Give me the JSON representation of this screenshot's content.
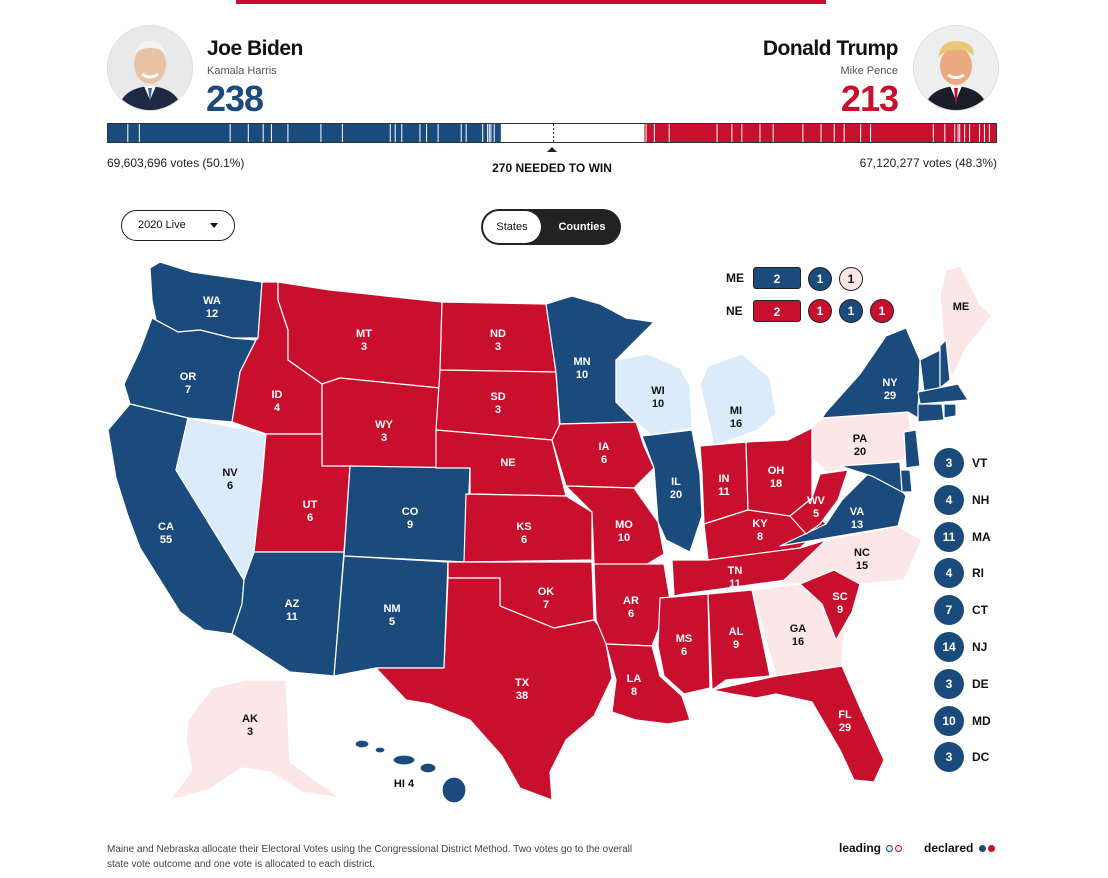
{
  "colors": {
    "dem_declared": "#1b4a7d",
    "rep_declared": "#c8102e",
    "dem_leading": "#dcebf9",
    "rep_leading": "#fbe6e8"
  },
  "candidates": {
    "dem": {
      "name": "Joe Biden",
      "running_mate": "Kamala Harris",
      "electoral_votes": "238",
      "popular": "69,603,696 votes (50.1%)",
      "avatar_icon": "candidate-photo-biden"
    },
    "rep": {
      "name": "Donald Trump",
      "running_mate": "Mike Pence",
      "electoral_votes": "213",
      "popular": "67,120,277 votes (48.3%)",
      "avatar_icon": "candidate-photo-trump"
    }
  },
  "progress": {
    "dem_ev": 238,
    "rep_ev": 213,
    "total_ev": 538,
    "to_win": 270
  },
  "needed_label": "270 NEEDED TO WIN",
  "controls": {
    "year_select": "2020 Live",
    "view_toggle": {
      "option_a": "States",
      "option_b": "Counties",
      "selected": "States"
    }
  },
  "states": [
    {
      "abbr": "WA",
      "ev": "12",
      "status": "dem_declared"
    },
    {
      "abbr": "OR",
      "ev": "7",
      "status": "dem_declared"
    },
    {
      "abbr": "CA",
      "ev": "55",
      "status": "dem_declared"
    },
    {
      "abbr": "NV",
      "ev": "6",
      "status": "dem_leading"
    },
    {
      "abbr": "ID",
      "ev": "4",
      "status": "rep_declared"
    },
    {
      "abbr": "MT",
      "ev": "3",
      "status": "rep_declared"
    },
    {
      "abbr": "WY",
      "ev": "3",
      "status": "rep_declared"
    },
    {
      "abbr": "UT",
      "ev": "6",
      "status": "rep_declared"
    },
    {
      "abbr": "AZ",
      "ev": "11",
      "status": "dem_declared"
    },
    {
      "abbr": "CO",
      "ev": "9",
      "status": "dem_declared"
    },
    {
      "abbr": "NM",
      "ev": "5",
      "status": "dem_declared"
    },
    {
      "abbr": "ND",
      "ev": "3",
      "status": "rep_declared"
    },
    {
      "abbr": "SD",
      "ev": "3",
      "status": "rep_declared"
    },
    {
      "abbr": "NE",
      "ev": "",
      "status": "rep_declared"
    },
    {
      "abbr": "KS",
      "ev": "6",
      "status": "rep_declared"
    },
    {
      "abbr": "OK",
      "ev": "7",
      "status": "rep_declared"
    },
    {
      "abbr": "TX",
      "ev": "38",
      "status": "rep_declared"
    },
    {
      "abbr": "MN",
      "ev": "10",
      "status": "dem_declared"
    },
    {
      "abbr": "IA",
      "ev": "6",
      "status": "rep_declared"
    },
    {
      "abbr": "MO",
      "ev": "10",
      "status": "rep_declared"
    },
    {
      "abbr": "AR",
      "ev": "6",
      "status": "rep_declared"
    },
    {
      "abbr": "LA",
      "ev": "8",
      "status": "rep_declared"
    },
    {
      "abbr": "WI",
      "ev": "10",
      "status": "dem_leading"
    },
    {
      "abbr": "IL",
      "ev": "20",
      "status": "dem_declared"
    },
    {
      "abbr": "MI",
      "ev": "16",
      "status": "dem_leading"
    },
    {
      "abbr": "IN",
      "ev": "11",
      "status": "rep_declared"
    },
    {
      "abbr": "OH",
      "ev": "18",
      "status": "rep_declared"
    },
    {
      "abbr": "KY",
      "ev": "8",
      "status": "rep_declared"
    },
    {
      "abbr": "TN",
      "ev": "11",
      "status": "rep_declared"
    },
    {
      "abbr": "MS",
      "ev": "6",
      "status": "rep_declared"
    },
    {
      "abbr": "AL",
      "ev": "9",
      "status": "rep_declared"
    },
    {
      "abbr": "GA",
      "ev": "16",
      "status": "rep_leading"
    },
    {
      "abbr": "FL",
      "ev": "29",
      "status": "rep_declared"
    },
    {
      "abbr": "SC",
      "ev": "9",
      "status": "rep_declared"
    },
    {
      "abbr": "NC",
      "ev": "15",
      "status": "rep_leading"
    },
    {
      "abbr": "VA",
      "ev": "13",
      "status": "dem_declared"
    },
    {
      "abbr": "WV",
      "ev": "5",
      "status": "rep_declared"
    },
    {
      "abbr": "PA",
      "ev": "20",
      "status": "rep_leading"
    },
    {
      "abbr": "NY",
      "ev": "29",
      "status": "dem_declared"
    },
    {
      "abbr": "ME",
      "ev": "",
      "status": "rep_leading"
    },
    {
      "abbr": "AK",
      "ev": "3",
      "status": "rep_leading"
    },
    {
      "abbr": "HI",
      "ev": "4",
      "status": "dem_declared"
    }
  ],
  "split_states": {
    "ME": {
      "label": "ME",
      "pill": "2",
      "districts": [
        "1",
        "1"
      ]
    },
    "NE": {
      "label": "NE",
      "pill": "2",
      "districts": [
        "1",
        "1",
        "1"
      ]
    }
  },
  "small_states": [
    {
      "abbr": "VT",
      "ev": "3"
    },
    {
      "abbr": "NH",
      "ev": "4"
    },
    {
      "abbr": "MA",
      "ev": "11"
    },
    {
      "abbr": "RI",
      "ev": "4"
    },
    {
      "abbr": "CT",
      "ev": "7"
    },
    {
      "abbr": "NJ",
      "ev": "14"
    },
    {
      "abbr": "DE",
      "ev": "3"
    },
    {
      "abbr": "MD",
      "ev": "10"
    },
    {
      "abbr": "DC",
      "ev": "3"
    }
  ],
  "footnote": "Maine and Nebraska allocate their Electoral Votes using the Congressional District Method. Two votes go to the overall state vote outcome and one vote is allocated to each district.",
  "legend": {
    "leading": "leading",
    "declared": "declared"
  }
}
